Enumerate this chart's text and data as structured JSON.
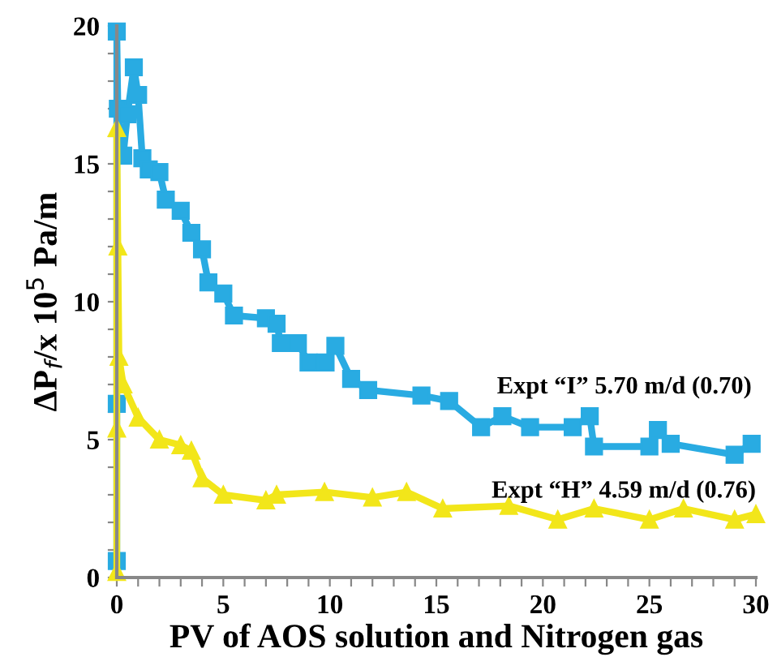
{
  "chart_data": {
    "type": "line",
    "xlabel": "PV of AOS solution and Nitrogen gas",
    "ylabel": "ΔP$_{f}$/x 10$^{5}$ Pa/m",
    "xlim": [
      0,
      30
    ],
    "ylim": [
      0,
      20
    ],
    "xticks": [
      0,
      {
        "value": 1,
        "label": null
      },
      {
        "value": 2,
        "label": null
      },
      {
        "value": 3,
        "label": null
      },
      {
        "value": 4,
        "label": null
      },
      5,
      {
        "value": 6,
        "label": null
      },
      {
        "value": 7,
        "label": null
      },
      {
        "value": 8,
        "label": null
      },
      {
        "value": 9,
        "label": null
      },
      10,
      {
        "value": 11,
        "label": null
      },
      {
        "value": 12,
        "label": null
      },
      {
        "value": 13,
        "label": null
      },
      {
        "value": 14,
        "label": null
      },
      15,
      {
        "value": 16,
        "label": null
      },
      {
        "value": 17,
        "label": null
      },
      {
        "value": 18,
        "label": null
      },
      {
        "value": 19,
        "label": null
      },
      20,
      {
        "value": 21,
        "label": null
      },
      {
        "value": 22,
        "label": null
      },
      {
        "value": 23,
        "label": null
      },
      {
        "value": 24,
        "label": null
      },
      25,
      {
        "value": 26,
        "label": null
      },
      {
        "value": 27,
        "label": null
      },
      {
        "value": 28,
        "label": null
      },
      {
        "value": 29,
        "label": null
      },
      30
    ],
    "yticks": [
      0,
      {
        "value": 1,
        "label": null
      },
      {
        "value": 2,
        "label": null
      },
      {
        "value": 3,
        "label": null
      },
      {
        "value": 4,
        "label": null
      },
      5,
      {
        "value": 6,
        "label": null
      },
      {
        "value": 7,
        "label": null
      },
      {
        "value": 8,
        "label": null
      },
      {
        "value": 9,
        "label": null
      },
      10,
      {
        "value": 11,
        "label": null
      },
      {
        "value": 12,
        "label": null
      },
      {
        "value": 13,
        "label": null
      },
      {
        "value": 14,
        "label": null
      },
      15,
      {
        "value": 16,
        "label": null
      },
      {
        "value": 17,
        "label": null
      },
      {
        "value": 18,
        "label": null
      },
      {
        "value": 19,
        "label": null
      },
      20
    ],
    "grid": false,
    "legend": false,
    "line_style": "solid",
    "series": [
      {
        "name": "Expt “I” 5.70 m/d (0.70)",
        "color": "#29abe2",
        "marker": "square",
        "x": [
          0,
          0,
          0,
          0.05,
          0.3,
          0.5,
          0.8,
          1.0,
          1.2,
          1.5,
          2,
          2.3,
          3,
          3.5,
          4,
          4.3,
          5,
          5.5,
          7,
          7.5,
          7.7,
          8.5,
          9,
          9.8,
          10.26,
          11.0,
          11.8,
          14.3,
          15.6,
          17.1,
          18.1,
          19.4,
          21.4,
          22.2,
          22.4,
          25.0,
          25.4,
          26.0,
          29.0,
          29.8
        ],
        "values": [
          0.6,
          6.3,
          19.8,
          17,
          15.3,
          16.8,
          18.5,
          17.5,
          15.2,
          14.8,
          14.7,
          13.7,
          13.3,
          12.5,
          11.9,
          10.7,
          10.3,
          9.5,
          9.4,
          9.2,
          8.5,
          8.5,
          7.8,
          7.8,
          8.4,
          7.2,
          6.8,
          6.6,
          6.4,
          5.45,
          5.85,
          5.45,
          5.45,
          5.85,
          4.75,
          4.75,
          5.35,
          4.85,
          4.45,
          4.85
        ]
      },
      {
        "name": "Expt “H” 4.59 m/d (0.76)",
        "color": "#f2e61a",
        "marker": "triangle",
        "x": [
          0,
          0,
          0,
          0.05,
          0.1,
          0.3,
          1,
          2,
          3,
          3.5,
          4,
          5,
          7,
          7.5,
          9.75,
          12,
          13.6,
          15.3,
          18.4,
          20.7,
          22.4,
          25.0,
          26.6,
          29.0,
          30.0
        ],
        "values": [
          0.2,
          5.4,
          16.3,
          12,
          8,
          7,
          5.8,
          5,
          4.8,
          4.6,
          3.6,
          3,
          2.8,
          3.0,
          3.1,
          2.9,
          3.1,
          2.5,
          2.6,
          2.1,
          2.5,
          2.1,
          2.5,
          2.1,
          2.3
        ]
      }
    ]
  }
}
